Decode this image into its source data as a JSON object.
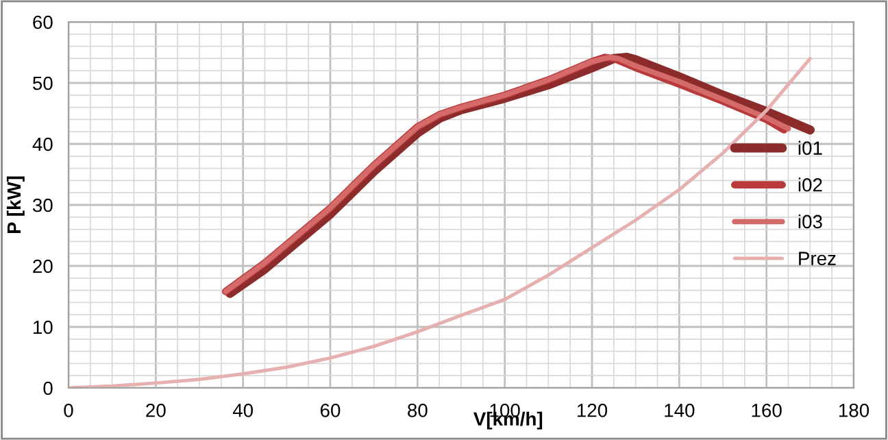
{
  "chart_data": {
    "type": "line",
    "xlabel": "V[km/h]",
    "ylabel": "P [kW]",
    "xlim": [
      0,
      180
    ],
    "xticks": [
      0,
      20,
      40,
      60,
      80,
      100,
      120,
      140,
      160,
      180
    ],
    "ylim": [
      0,
      60
    ],
    "yticks": [
      0,
      10,
      20,
      30,
      40,
      50,
      60
    ],
    "grid": true,
    "legend": "right",
    "marker": "none",
    "line_style": "solid",
    "series": [
      {
        "name": "i01",
        "color": "#8b2b2b",
        "x": [
          37,
          45,
          50,
          60,
          70,
          80,
          85,
          90,
          100,
          110,
          120,
          125,
          128,
          130,
          140,
          150,
          160,
          170
        ],
        "values": [
          15.5,
          19.5,
          22.5,
          28.5,
          35.5,
          41.8,
          44.2,
          45.6,
          47.5,
          49.7,
          52.5,
          54,
          54.2,
          53.8,
          51,
          48,
          45.3,
          42.3
        ]
      },
      {
        "name": "i02",
        "color": "#b83a3a",
        "x": [
          36,
          45,
          50,
          60,
          70,
          80,
          85,
          90,
          100,
          110,
          120,
          123,
          125,
          130,
          140,
          150,
          160,
          164
        ],
        "values": [
          15.8,
          20.5,
          23.5,
          29.5,
          36.5,
          42.8,
          44.8,
          46,
          48,
          50.5,
          53.5,
          54.2,
          54,
          52.5,
          49.8,
          47,
          44,
          42.3
        ]
      },
      {
        "name": "i03",
        "color": "#d46a6a",
        "x": [
          36,
          45,
          50,
          60,
          70,
          80,
          85,
          90,
          100,
          110,
          120,
          124,
          126,
          130,
          140,
          150,
          160,
          165
        ],
        "values": [
          15.8,
          20.5,
          23.5,
          29.5,
          36.5,
          42.8,
          44.8,
          46,
          48,
          50.5,
          53.5,
          54.2,
          54,
          52.8,
          50.2,
          47.3,
          44.3,
          42.5
        ]
      },
      {
        "name": "Prez",
        "color": "#e6b0b0",
        "x": [
          0,
          10,
          20,
          30,
          40,
          50,
          60,
          70,
          80,
          90,
          100,
          110,
          120,
          130,
          140,
          150,
          160,
          170
        ],
        "values": [
          0,
          0.3,
          0.8,
          1.4,
          2.3,
          3.4,
          4.9,
          6.8,
          9.2,
          11.9,
          14.5,
          18.5,
          23,
          27.5,
          32.5,
          38.5,
          45.5,
          54
        ]
      }
    ]
  }
}
